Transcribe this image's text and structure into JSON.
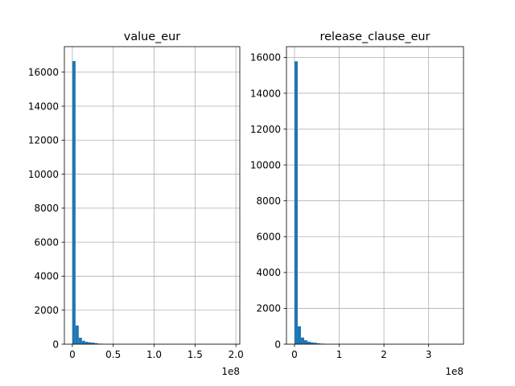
{
  "chart_data": [
    {
      "type": "bar",
      "title": "value_eur",
      "xlabel": "",
      "ylabel": "",
      "x_offset_label": "1e8",
      "xlim": [
        -9750000,
        204750000
      ],
      "ylim": [
        0,
        17500
      ],
      "xticks": [
        0,
        50000000,
        100000000,
        150000000,
        200000000
      ],
      "xtick_labels": [
        "0",
        "0.5",
        "1.0",
        "1.5",
        "2.0"
      ],
      "yticks": [
        0,
        2000,
        4000,
        6000,
        8000,
        10000,
        12000,
        14000,
        16000
      ],
      "ytick_labels": [
        "0",
        "2000",
        "4000",
        "6000",
        "8000",
        "10000",
        "12000",
        "14000",
        "16000"
      ],
      "grid": true,
      "color": "#1f77b4",
      "bin_start": 0,
      "bin_width": 3900000,
      "values": [
        16650,
        1100,
        380,
        200,
        140,
        110,
        90,
        60,
        30,
        20,
        10,
        8,
        6,
        4,
        3,
        2,
        2,
        1,
        1,
        1,
        1,
        0,
        1,
        0,
        0,
        0,
        0,
        0,
        0,
        0,
        0,
        0,
        0,
        0,
        0,
        0,
        0,
        0,
        0,
        0,
        0,
        0,
        0,
        0,
        0,
        0,
        0,
        0,
        0,
        1
      ]
    },
    {
      "type": "bar",
      "title": "release_clause_eur",
      "xlabel": "",
      "ylabel": "",
      "x_offset_label": "1e8",
      "xlim": [
        -18000000,
        378000000
      ],
      "ylim": [
        0,
        16600
      ],
      "xticks": [
        0,
        100000000,
        200000000,
        300000000
      ],
      "xtick_labels": [
        "0",
        "1",
        "2",
        "3"
      ],
      "yticks": [
        0,
        2000,
        4000,
        6000,
        8000,
        10000,
        12000,
        14000,
        16000
      ],
      "ytick_labels": [
        "0",
        "2000",
        "4000",
        "6000",
        "8000",
        "10000",
        "12000",
        "14000",
        "16000"
      ],
      "grid": true,
      "color": "#1f77b4",
      "bin_start": 0,
      "bin_width": 7200000,
      "values": [
        15780,
        1000,
        370,
        220,
        140,
        100,
        80,
        50,
        30,
        20,
        10,
        8,
        6,
        4,
        3,
        2,
        2,
        1,
        1,
        1,
        1,
        0,
        1,
        0,
        0,
        0,
        0,
        0,
        0,
        0,
        0,
        0,
        0,
        0,
        0,
        0,
        0,
        0,
        0,
        0,
        0,
        0,
        0,
        0,
        0,
        0,
        0,
        0,
        0,
        1
      ]
    }
  ]
}
